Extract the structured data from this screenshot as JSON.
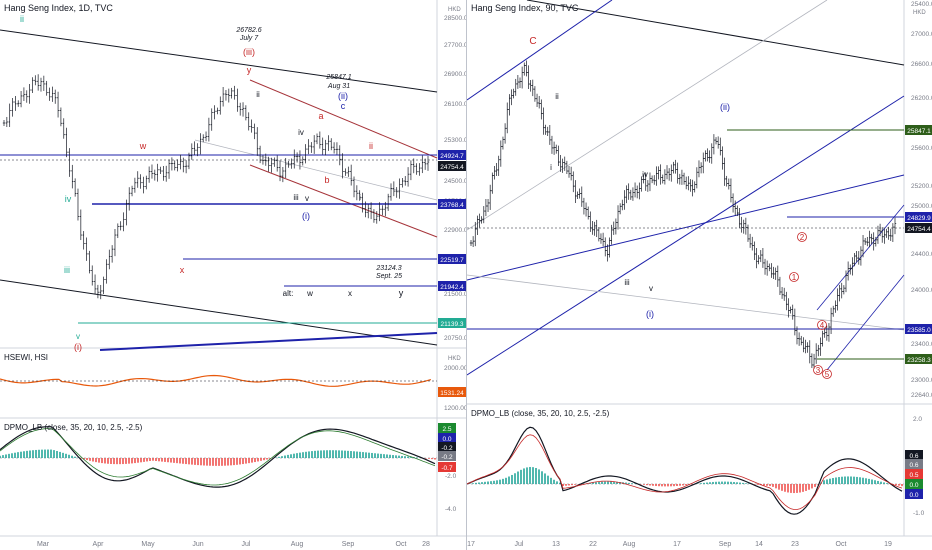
{
  "left": {
    "title": "Hang Seng Index, 1D, TVC",
    "currency": "HKD",
    "price_axis": [
      "28500.0",
      "27700.0",
      "26900.0",
      "26100.0",
      "25300.0",
      "24500.0",
      "23700.0",
      "22900.0",
      "22100.0",
      "21500.0",
      "20750.0"
    ],
    "price_badges": [
      {
        "label": "24924.7",
        "color": "#1e22aa"
      },
      {
        "label": "24754.4",
        "color": "#131722"
      },
      {
        "label": "23768.4",
        "color": "#1e22aa"
      },
      {
        "label": "22519.7",
        "color": "#1e22aa"
      },
      {
        "label": "21942.4",
        "color": "#1e22aa"
      },
      {
        "label": "21139.3",
        "color": "#22ab94"
      }
    ],
    "wave_labels": [
      {
        "text": "ii",
        "color": "#22ab94"
      },
      {
        "text": "26782.6",
        "color": "#131722"
      },
      {
        "text": "July 7",
        "color": "#131722"
      },
      {
        "text": "(iii)",
        "color": "#c62828"
      },
      {
        "text": "y",
        "color": "#c62828"
      },
      {
        "text": "ii",
        "color": "#131722"
      },
      {
        "text": "25847.1",
        "color": "#131722"
      },
      {
        "text": "Aug 31",
        "color": "#131722"
      },
      {
        "text": "(ii)",
        "color": "#1e22aa"
      },
      {
        "text": "c",
        "color": "#1e22aa"
      },
      {
        "text": "a",
        "color": "#c62828"
      },
      {
        "text": "w",
        "color": "#c62828"
      },
      {
        "text": "iv",
        "color": "#131722"
      },
      {
        "text": "ii",
        "color": "#c62828"
      },
      {
        "text": "b",
        "color": "#c62828"
      },
      {
        "text": "i",
        "color": "#131722"
      },
      {
        "text": "iv",
        "color": "#22ab94"
      },
      {
        "text": "iii",
        "color": "#131722"
      },
      {
        "text": "v",
        "color": "#131722"
      },
      {
        "text": "(i)",
        "color": "#1e22aa"
      },
      {
        "text": "iii",
        "color": "#22ab94"
      },
      {
        "text": "x",
        "color": "#c62828"
      },
      {
        "text": "23124.3",
        "color": "#131722"
      },
      {
        "text": "Sept. 25",
        "color": "#131722"
      },
      {
        "text": "alt:",
        "color": "#131722"
      },
      {
        "text": "w",
        "color": "#131722"
      },
      {
        "text": "x",
        "color": "#131722"
      },
      {
        "text": "y",
        "color": "#131722"
      },
      {
        "text": "v",
        "color": "#22ab94"
      },
      {
        "text": "(i)",
        "color": "#c62828"
      }
    ],
    "x_axis": [
      "Mar",
      "Apr",
      "May",
      "Jun",
      "Jul",
      "Aug",
      "Sep",
      "Oct",
      "28"
    ],
    "hsewi": {
      "title": "HSEWI, HSI",
      "currency": "HKD",
      "axis": [
        "2000.00",
        "1600.00",
        "1200.00"
      ],
      "badge": "1531.24"
    },
    "dpmo": {
      "title": "DPMO_LB (close, 35, 20, 10, 2.5, -2.5)",
      "axis": [
        "-2.0",
        "-4.0"
      ],
      "badges": [
        {
          "label": "2.5",
          "color": "#1b8a2f"
        },
        {
          "label": "0.0",
          "color": "#1e22aa"
        },
        {
          "label": "-0.2",
          "color": "#131722"
        },
        {
          "label": "-0.2",
          "color": "#787b86"
        },
        {
          "label": "-0.7",
          "color": "#e53935"
        }
      ]
    }
  },
  "right": {
    "title": "Hang Seng Index, 90, TVC",
    "currency": "HKD",
    "price_axis": [
      "25400.0",
      "27000.0",
      "26600.0",
      "26200.0",
      "25600.0",
      "25200.0",
      "25000.0",
      "24400.0",
      "24000.0",
      "23600.0",
      "23400.0",
      "23000.0",
      "22640.0"
    ],
    "price_badges": [
      {
        "label": "25847.1",
        "color": "#2e5e1a"
      },
      {
        "label": "24829.9",
        "color": "#1e22aa"
      },
      {
        "label": "24754.4",
        "color": "#131722"
      },
      {
        "label": "23585.0",
        "color": "#1e22aa"
      },
      {
        "label": "23258.3",
        "color": "#2e5e1a"
      }
    ],
    "wave_labels": [
      {
        "text": "C",
        "color": "#c62828"
      },
      {
        "text": "ii",
        "color": "#131722"
      },
      {
        "text": "i",
        "color": "#131722"
      },
      {
        "text": "(ii)",
        "color": "#1e22aa"
      },
      {
        "text": "iv",
        "color": "#131722"
      },
      {
        "text": "iii",
        "color": "#131722"
      },
      {
        "text": "v",
        "color": "#131722"
      },
      {
        "text": "(i)",
        "color": "#1e22aa"
      },
      {
        "text": "2",
        "color": "#c62828"
      },
      {
        "text": "1",
        "color": "#c62828"
      },
      {
        "text": "4",
        "color": "#c62828"
      },
      {
        "text": "3",
        "color": "#c62828"
      },
      {
        "text": "5",
        "color": "#c62828"
      }
    ],
    "x_axis": [
      "17",
      "Jul",
      "13",
      "22",
      "Aug",
      "17",
      "Sep",
      "14",
      "23",
      "Oct",
      "19"
    ],
    "dpmo": {
      "title": "DPMO_LB (close, 35, 20, 10, 2.5, -2.5)",
      "axis": [
        "2.0",
        "-1.0"
      ],
      "badges": [
        {
          "label": "0.6",
          "color": "#131722"
        },
        {
          "label": "0.6",
          "color": "#787b86"
        },
        {
          "label": "0.5",
          "color": "#e53935"
        },
        {
          "label": "0.0",
          "color": "#1b8a2f"
        },
        {
          "label": "0.0",
          "color": "#1e22aa"
        }
      ]
    }
  }
}
